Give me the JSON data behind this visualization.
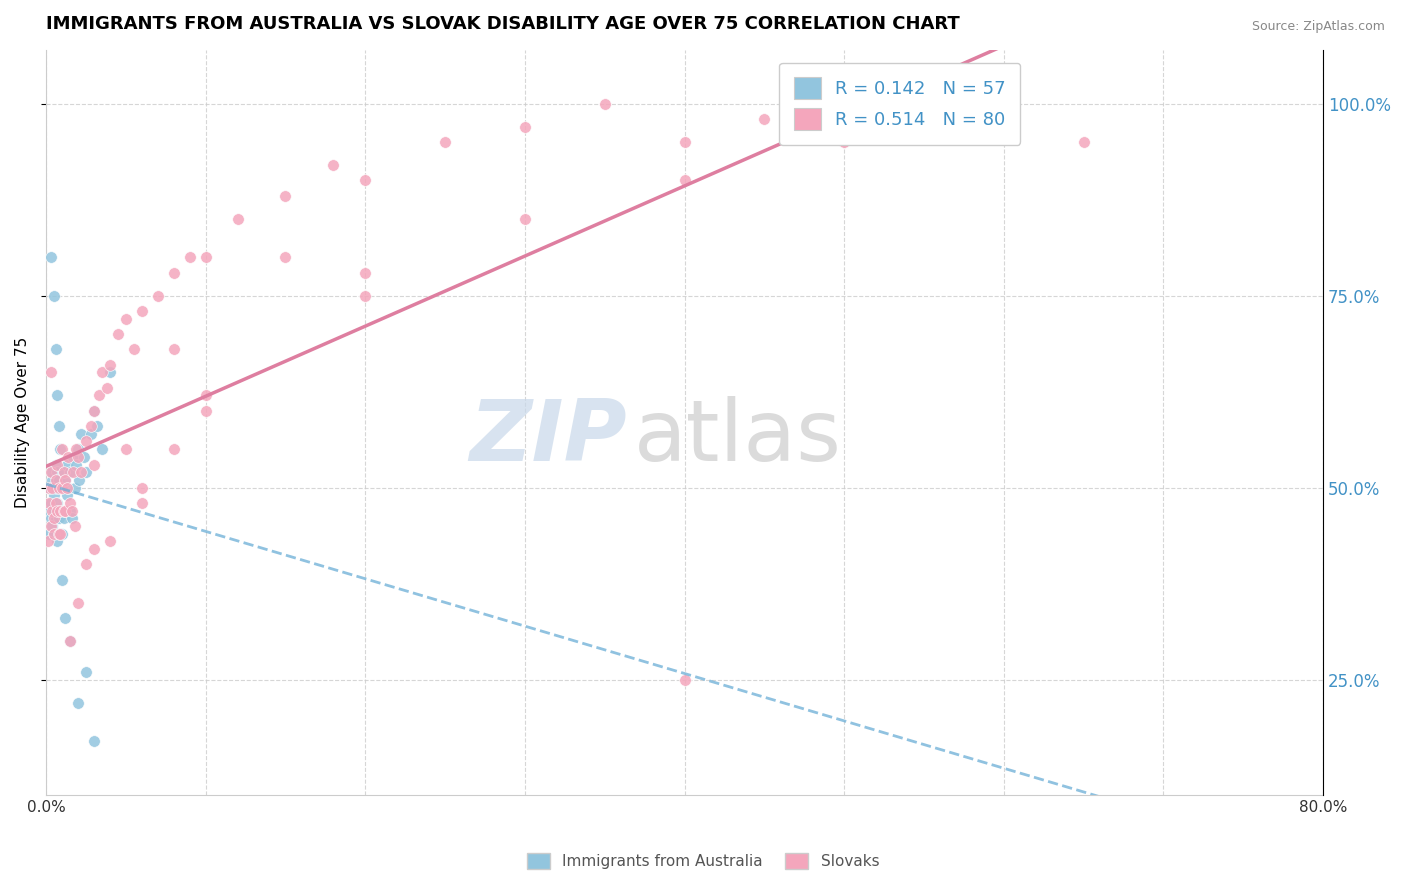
{
  "title": "IMMIGRANTS FROM AUSTRALIA VS SLOVAK DISABILITY AGE OVER 75 CORRELATION CHART",
  "source": "Source: ZipAtlas.com",
  "ylabel": "Disability Age Over 75",
  "xlim": [
    0.0,
    0.8
  ],
  "ylim": [
    0.1,
    1.07
  ],
  "yticks_right": [
    0.25,
    0.5,
    0.75,
    1.0
  ],
  "R_blue": 0.142,
  "N_blue": 57,
  "R_pink": 0.514,
  "N_pink": 80,
  "blue_color": "#92c5de",
  "pink_color": "#f4a6bc",
  "blue_line_color": "#6baed6",
  "pink_line_color": "#de7ea0",
  "title_fontsize": 13,
  "label_fontsize": 11,
  "legend_fontsize": 13,
  "blue_scatter_x": [
    0.001,
    0.002,
    0.002,
    0.003,
    0.003,
    0.004,
    0.004,
    0.004,
    0.005,
    0.005,
    0.005,
    0.006,
    0.006,
    0.006,
    0.007,
    0.007,
    0.007,
    0.008,
    0.008,
    0.009,
    0.009,
    0.01,
    0.01,
    0.011,
    0.011,
    0.012,
    0.012,
    0.013,
    0.013,
    0.014,
    0.015,
    0.015,
    0.016,
    0.017,
    0.018,
    0.019,
    0.02,
    0.021,
    0.022,
    0.024,
    0.025,
    0.028,
    0.03,
    0.032,
    0.035,
    0.04,
    0.003,
    0.005,
    0.006,
    0.007,
    0.008,
    0.01,
    0.012,
    0.015,
    0.02,
    0.025,
    0.03
  ],
  "blue_scatter_y": [
    0.47,
    0.5,
    0.44,
    0.46,
    0.48,
    0.51,
    0.45,
    0.52,
    0.49,
    0.44,
    0.47,
    0.5,
    0.46,
    0.53,
    0.48,
    0.43,
    0.52,
    0.46,
    0.51,
    0.47,
    0.55,
    0.5,
    0.44,
    0.52,
    0.46,
    0.51,
    0.47,
    0.53,
    0.49,
    0.5,
    0.47,
    0.52,
    0.46,
    0.54,
    0.5,
    0.53,
    0.55,
    0.51,
    0.57,
    0.54,
    0.52,
    0.57,
    0.6,
    0.58,
    0.55,
    0.65,
    0.8,
    0.75,
    0.68,
    0.62,
    0.58,
    0.38,
    0.33,
    0.3,
    0.22,
    0.26,
    0.17
  ],
  "pink_scatter_x": [
    0.001,
    0.002,
    0.002,
    0.003,
    0.003,
    0.004,
    0.004,
    0.005,
    0.005,
    0.006,
    0.006,
    0.007,
    0.007,
    0.008,
    0.008,
    0.009,
    0.009,
    0.01,
    0.01,
    0.011,
    0.011,
    0.012,
    0.012,
    0.013,
    0.014,
    0.015,
    0.016,
    0.017,
    0.018,
    0.019,
    0.02,
    0.022,
    0.025,
    0.028,
    0.03,
    0.03,
    0.033,
    0.035,
    0.038,
    0.04,
    0.045,
    0.05,
    0.055,
    0.06,
    0.07,
    0.08,
    0.09,
    0.1,
    0.12,
    0.15,
    0.18,
    0.2,
    0.25,
    0.3,
    0.35,
    0.4,
    0.45,
    0.5,
    0.02,
    0.015,
    0.04,
    0.06,
    0.08,
    0.1,
    0.2,
    0.3,
    0.4,
    0.15,
    0.03,
    0.025,
    0.06,
    0.1,
    0.05,
    0.08,
    0.2,
    0.5,
    0.003,
    0.4,
    0.6,
    0.65
  ],
  "pink_scatter_y": [
    0.43,
    0.48,
    0.5,
    0.45,
    0.52,
    0.47,
    0.5,
    0.44,
    0.46,
    0.51,
    0.48,
    0.47,
    0.53,
    0.44,
    0.5,
    0.47,
    0.44,
    0.5,
    0.55,
    0.47,
    0.52,
    0.47,
    0.51,
    0.5,
    0.54,
    0.48,
    0.47,
    0.52,
    0.45,
    0.55,
    0.54,
    0.52,
    0.56,
    0.58,
    0.6,
    0.53,
    0.62,
    0.65,
    0.63,
    0.66,
    0.7,
    0.72,
    0.68,
    0.73,
    0.75,
    0.78,
    0.8,
    0.8,
    0.85,
    0.88,
    0.92,
    0.9,
    0.95,
    0.97,
    1.0,
    0.95,
    0.98,
    0.95,
    0.35,
    0.3,
    0.43,
    0.48,
    0.55,
    0.6,
    0.75,
    0.85,
    0.9,
    0.8,
    0.42,
    0.4,
    0.5,
    0.62,
    0.55,
    0.68,
    0.78,
    0.95,
    0.65,
    0.25,
    1.0,
    0.95
  ],
  "watermark_zip_color": "#c8d8ea",
  "watermark_atlas_color": "#c8c8c8"
}
